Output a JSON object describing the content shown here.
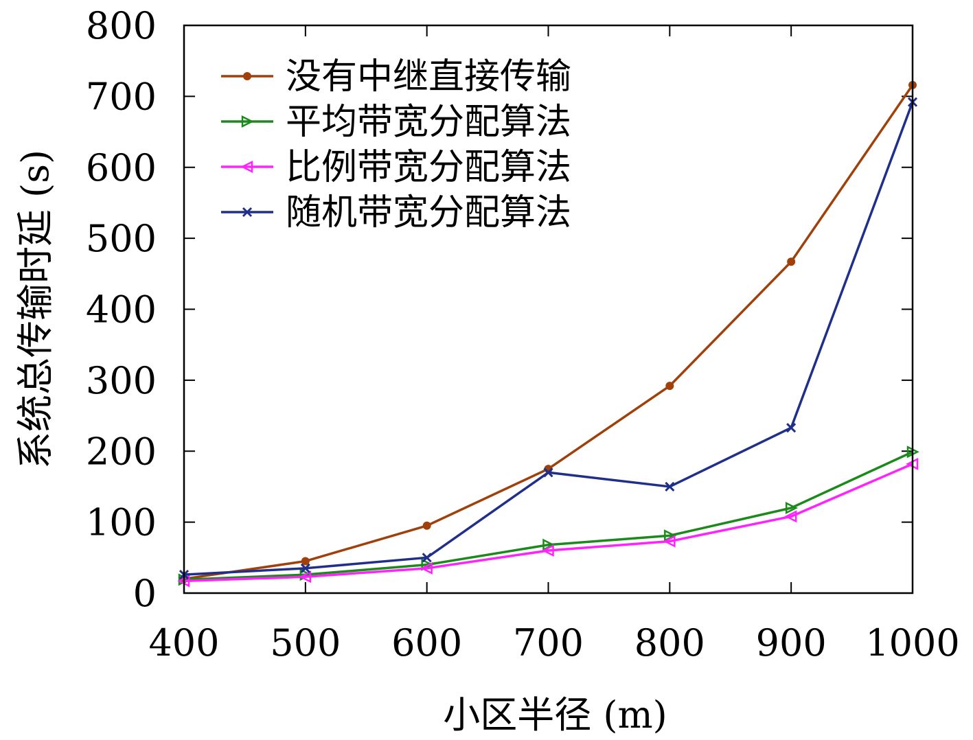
{
  "chart_data": {
    "type": "line",
    "title": "",
    "xlabel": "小区半径 (m)",
    "ylabel": "系统总传输时延 (s)",
    "x": [
      400,
      500,
      600,
      700,
      800,
      900,
      1000
    ],
    "xlim": [
      400,
      1000
    ],
    "ylim": [
      0,
      800
    ],
    "xticks": [
      "400",
      "500",
      "600",
      "700",
      "800",
      "900",
      "1000"
    ],
    "yticks": [
      "0",
      "100",
      "200",
      "300",
      "400",
      "500",
      "600",
      "700",
      "800"
    ],
    "grid": false,
    "legend_position": "top-left",
    "series": [
      {
        "name": "没有中继直接传输",
        "color": "#a0400a",
        "marker": "circle",
        "values": [
          20,
          45,
          95,
          175,
          292,
          467,
          716
        ]
      },
      {
        "name": "平均带宽分配算法",
        "color": "#1a8a1a",
        "marker": "triangle-right",
        "values": [
          19,
          26,
          40,
          68,
          81,
          120,
          199
        ]
      },
      {
        "name": "比例带宽分配算法",
        "color": "#ff22ff",
        "marker": "triangle-left",
        "values": [
          17,
          23,
          35,
          60,
          73,
          108,
          182
        ]
      },
      {
        "name": "随机带宽分配算法",
        "color": "#1f2f8a",
        "marker": "x",
        "values": [
          26,
          35,
          50,
          170,
          150,
          233,
          692
        ]
      }
    ]
  }
}
